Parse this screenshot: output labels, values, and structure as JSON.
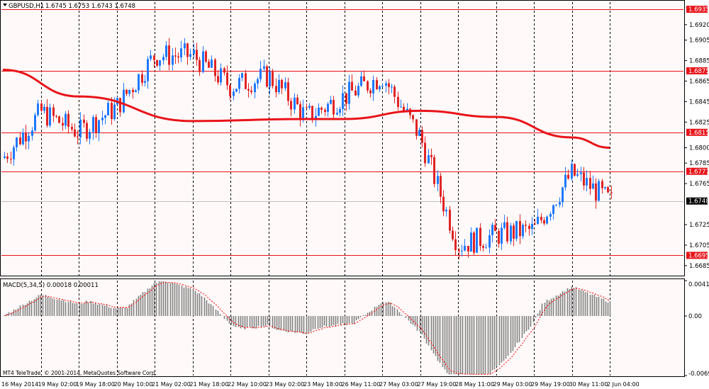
{
  "header": {
    "symbol": "GBPUSD,H1",
    "ohlc": "1.6745 1.6753 1.6743 1.6748"
  },
  "footer": {
    "copyright": "MT4 TeleTrade, © 2001-2014, MetaQuotes Software Corp."
  },
  "colors": {
    "background": "#fff9f9",
    "grid": "#000000",
    "bull_candle": "#1e78ff",
    "bear_candle": "#e02424",
    "moving_average": "#e8141a",
    "level_line": "#e8141a",
    "current_price_line": "#c0c0c0",
    "macd_hist": "#808080",
    "macd_signal": "#ff0000",
    "level_tag": "#e8141a",
    "current_tag": "#000000"
  },
  "price_axis": {
    "ticks": [
      "1.6920",
      "1.6905",
      "1.6885",
      "1.6865",
      "1.6845",
      "1.6825",
      "1.6800",
      "1.6785",
      "1.6765",
      "1.6725",
      "1.6705",
      "1.6685"
    ],
    "levels": [
      "1.6935",
      "1.6875",
      "1.6815",
      "1.6777",
      "1.6695"
    ],
    "current": "1.6748"
  },
  "macd": {
    "title": "MACD(5,34,5) 0.00018 0.00011",
    "ticks": [
      "0.00411",
      "0.00",
      "-0.00692"
    ]
  },
  "time_axis": {
    "labels": [
      "16 May 2014",
      "19 May 02:00",
      "19 May 18:00",
      "20 May 10:00",
      "21 May 02:00",
      "21 May 18:00",
      "22 May 10:00",
      "23 May 02:00",
      "23 May 18:00",
      "26 May 11:00",
      "27 May 03:00",
      "27 May 19:00",
      "28 May 11:00",
      "29 May 03:00",
      "29 May 19:00",
      "30 May 11:00",
      "2 Jun 04:00"
    ]
  },
  "chart_data": {
    "type": "candlestick",
    "symbol": "GBPUSD",
    "timeframe": "H1",
    "y_range": [
      1.6678,
      1.6942
    ],
    "key_closes": [
      {
        "time": "16 May 2014",
        "price": 1.679
      },
      {
        "time": "19 May 02:00",
        "price": 1.6835
      },
      {
        "time": "19 May 18:00",
        "price": 1.6815
      },
      {
        "time": "20 May 10:00",
        "price": 1.684
      },
      {
        "time": "21 May 02:00",
        "price": 1.689
      },
      {
        "time": "21 May 18:00",
        "price": 1.689
      },
      {
        "time": "22 May 10:00",
        "price": 1.686
      },
      {
        "time": "23 May 02:00",
        "price": 1.687
      },
      {
        "time": "23 May 18:00",
        "price": 1.683
      },
      {
        "time": "26 May 11:00",
        "price": 1.685
      },
      {
        "time": "27 May 03:00",
        "price": 1.687
      },
      {
        "time": "27 May 19:00",
        "price": 1.681
      },
      {
        "time": "28 May 11:00",
        "price": 1.6705
      },
      {
        "time": "29 May 03:00",
        "price": 1.6715
      },
      {
        "time": "29 May 19:00",
        "price": 1.672
      },
      {
        "time": "30 May 11:00",
        "price": 1.6775
      },
      {
        "time": "2 Jun 04:00",
        "price": 1.6748
      }
    ],
    "moving_average": [
      {
        "time": "16 May 2014",
        "price": 1.6876
      },
      {
        "time": "19 May 18:00",
        "price": 1.685
      },
      {
        "time": "21 May 18:00",
        "price": 1.6826
      },
      {
        "time": "23 May 18:00",
        "price": 1.6828
      },
      {
        "time": "26 May 11:00",
        "price": 1.6828
      },
      {
        "time": "27 May 19:00",
        "price": 1.6836
      },
      {
        "time": "29 May 03:00",
        "price": 1.683
      },
      {
        "time": "30 May 11:00",
        "price": 1.681
      },
      {
        "time": "2 Jun 04:00",
        "price": 1.68
      }
    ],
    "levels": [
      1.6935,
      1.6875,
      1.6815,
      1.6777,
      1.6695
    ],
    "current_price": 1.6748,
    "macd": {
      "fast": 5,
      "slow": 34,
      "signal": 5,
      "main": 0.00018,
      "signal_value": 0.00011,
      "y_range": [
        -0.00692,
        0.00411
      ]
    }
  }
}
